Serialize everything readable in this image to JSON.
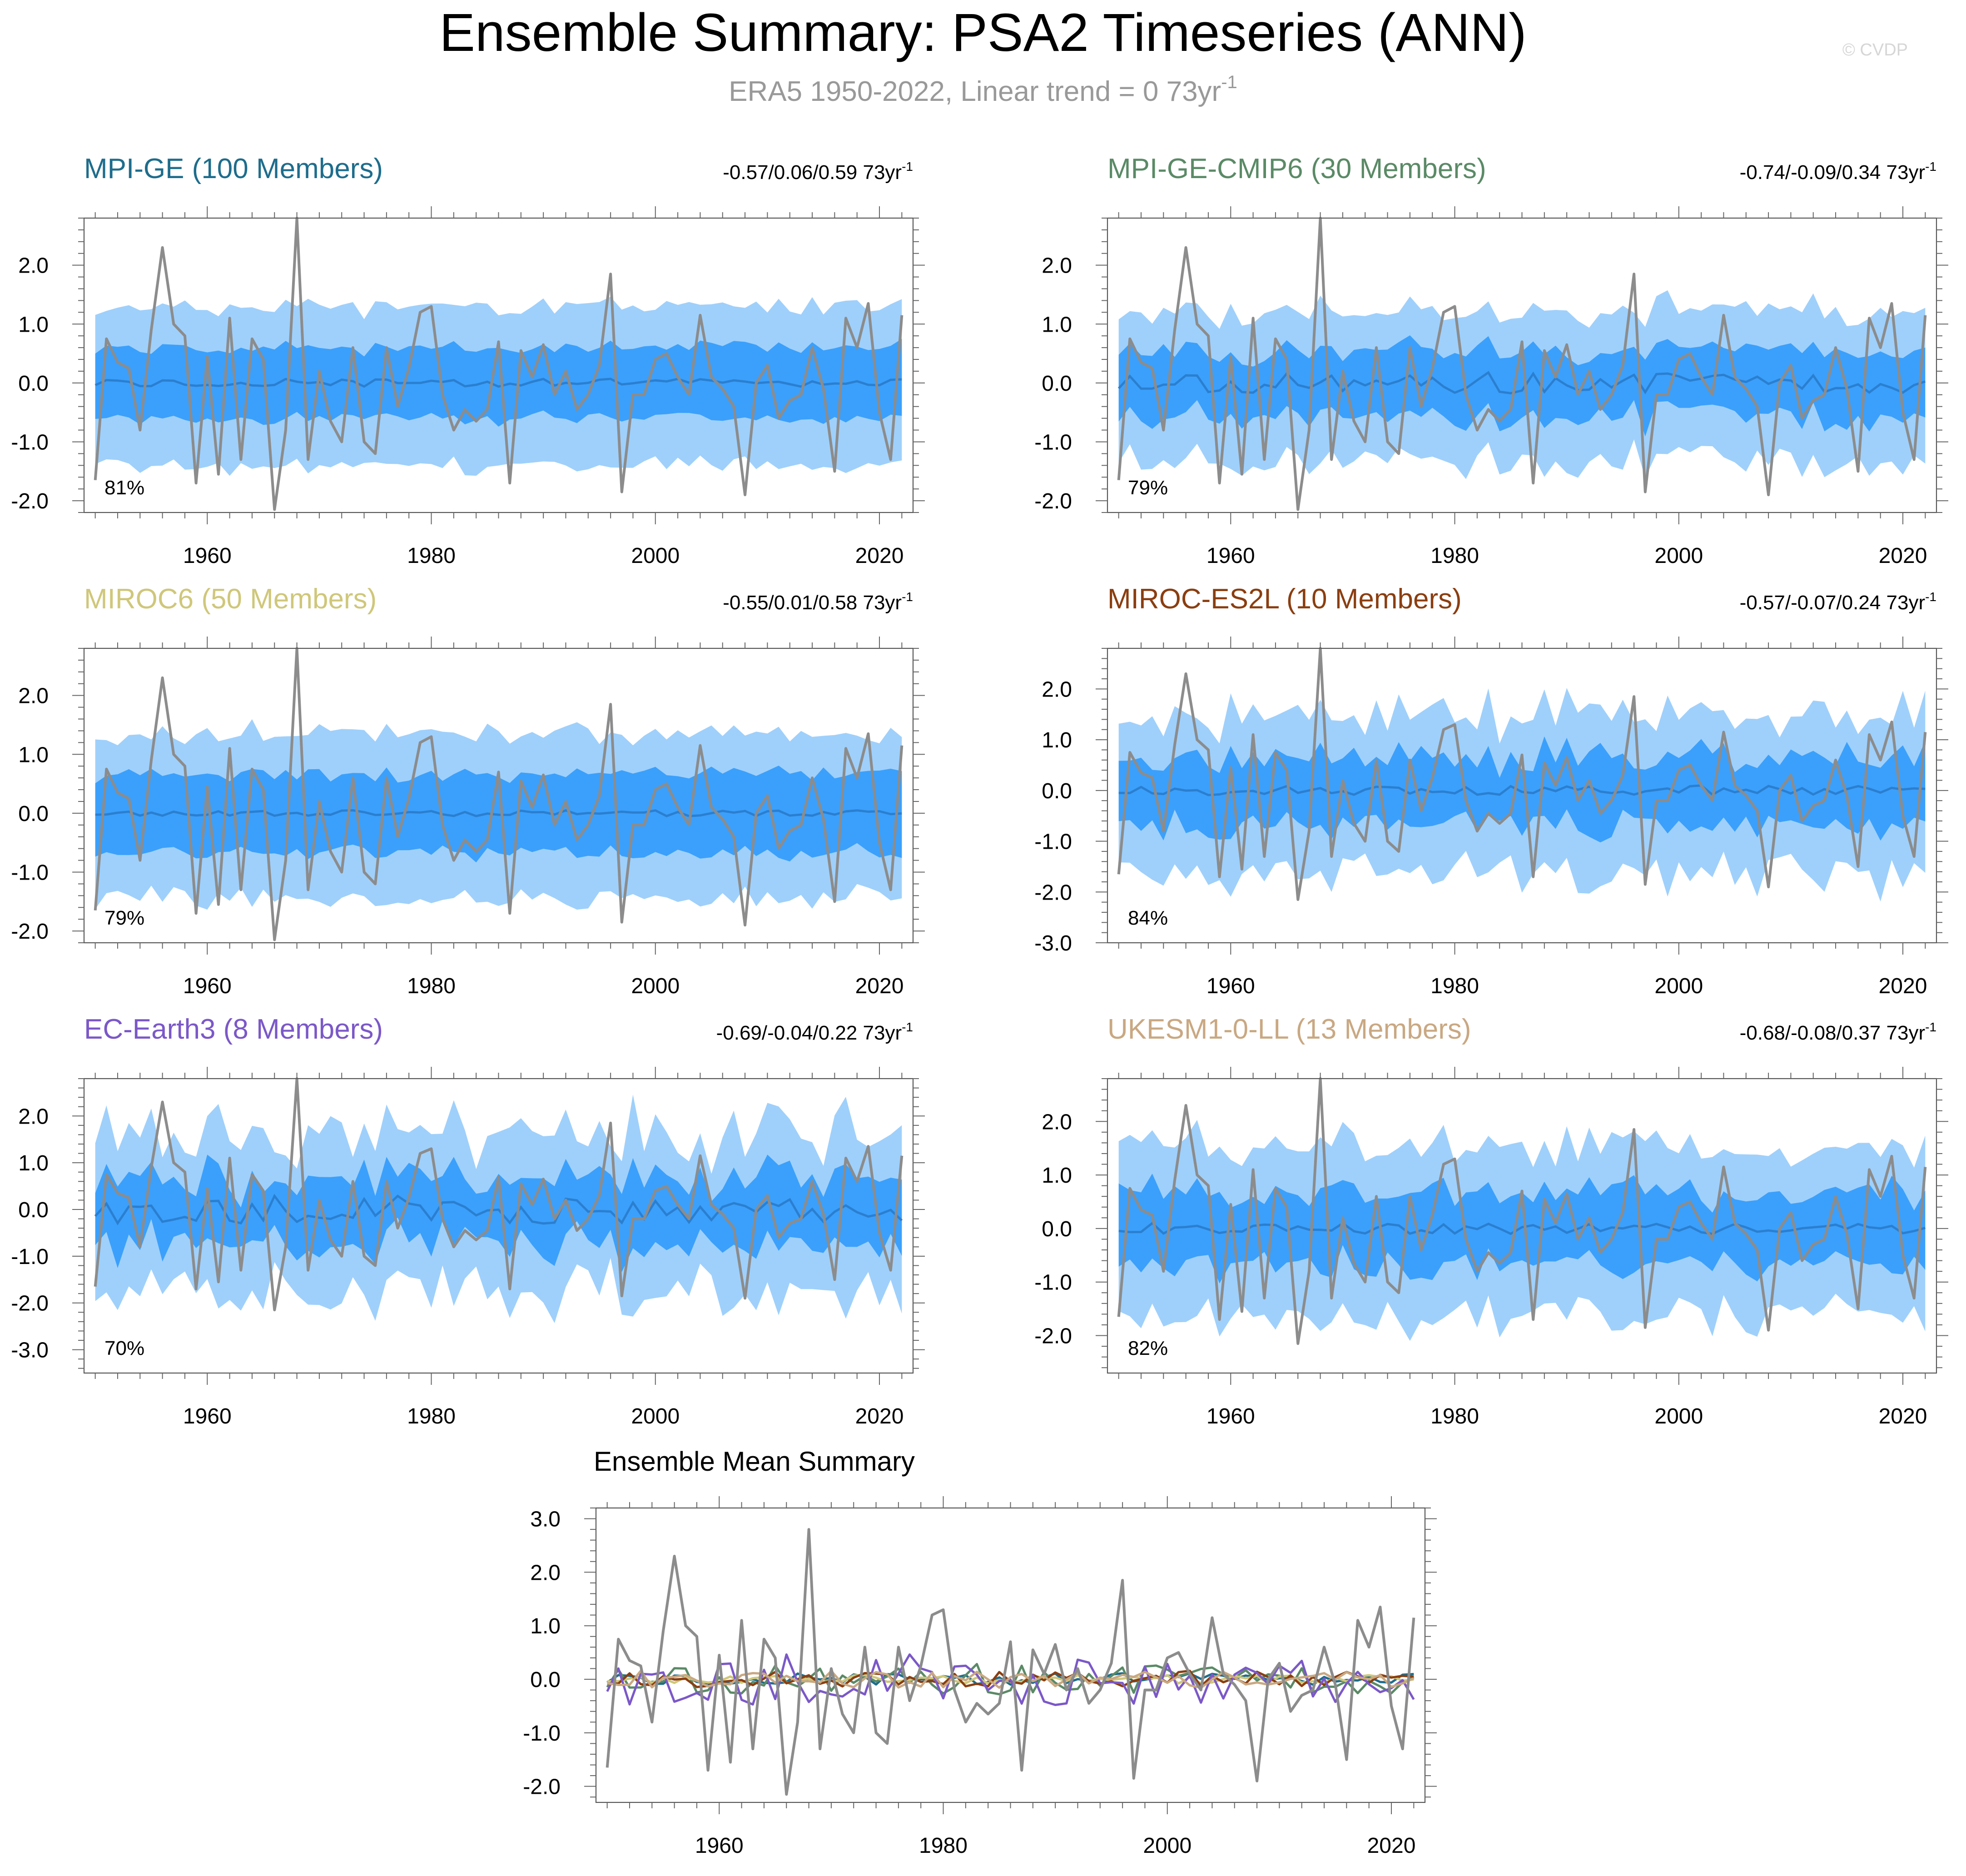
{
  "page": {
    "title": "Ensemble Summary: PSA2 Timeseries (ANN)",
    "subtitle": "ERA5 1950-2022, Linear trend = 0 73yr",
    "subtitle_sup": "-1",
    "watermark": "© CVDP"
  },
  "colors": {
    "outer_band": "#9fd0fb",
    "inner_band": "#3ba0fb",
    "ens_mean": "#2b7fd0",
    "obs": "#8c8c8c"
  },
  "chart_data": [
    {
      "type": "area",
      "title": "MPI-GE (100 Members)",
      "title_color": "#1e6d8c",
      "trend_label": "-0.57/0.06/0.59 73yr",
      "trend_sup": "-1",
      "corr_label": "81%",
      "ylim": [
        -2.2,
        2.8
      ],
      "yticks": [
        -2,
        -1,
        0,
        1,
        2
      ],
      "yticklabels": [
        "-2.0",
        "-1.0",
        "0.0",
        "1.0",
        "2.0"
      ],
      "xlim": [
        1949,
        2023
      ],
      "xticks": [
        1960,
        1980,
        2000,
        2020
      ],
      "xticklabels": [
        "1960",
        "1980",
        "2000",
        "2020"
      ],
      "outer": [
        1.2,
        1.4
      ],
      "inner": [
        0.55,
        0.65
      ],
      "noise": 0.06,
      "mean_amp": 0.07,
      "seed": 11
    },
    {
      "type": "area",
      "title": "MPI-GE-CMIP6 (30 Members)",
      "title_color": "#5a8a66",
      "trend_label": "-0.74/-0.09/0.34 73yr",
      "trend_sup": "-1",
      "corr_label": "79%",
      "ylim": [
        -2.2,
        2.8
      ],
      "yticks": [
        -2,
        -1,
        0,
        1,
        2
      ],
      "yticklabels": [
        "-2.0",
        "-1.0",
        "0.0",
        "1.0",
        "2.0"
      ],
      "xlim": [
        1949,
        2023
      ],
      "xticks": [
        1960,
        1980,
        2000,
        2020
      ],
      "xticklabels": [
        "1960",
        "1980",
        "2000",
        "2020"
      ],
      "outer": [
        1.1,
        1.35
      ],
      "inner": [
        0.5,
        0.65
      ],
      "noise": 0.12,
      "mean_amp": 0.18,
      "seed": 23
    },
    {
      "type": "area",
      "title": "MIROC6 (50 Members)",
      "title_color": "#cfc77a",
      "trend_label": "-0.55/0.01/0.58 73yr",
      "trend_sup": "-1",
      "corr_label": "79%",
      "ylim": [
        -2.2,
        2.8
      ],
      "yticks": [
        -2,
        -1,
        0,
        1,
        2
      ],
      "yticklabels": [
        "-2.0",
        "-1.0",
        "0.0",
        "1.0",
        "2.0"
      ],
      "xlim": [
        1949,
        2023
      ],
      "xticks": [
        1960,
        1980,
        2000,
        2020
      ],
      "xticklabels": [
        "1960",
        "1980",
        "2000",
        "2020"
      ],
      "outer": [
        1.2,
        1.5
      ],
      "inner": [
        0.6,
        0.75
      ],
      "noise": 0.1,
      "mean_amp": 0.05,
      "seed": 37
    },
    {
      "type": "area",
      "title": "MIROC-ES2L (10 Members)",
      "title_color": "#8b3e10",
      "trend_label": "-0.57/-0.07/0.24 73yr",
      "trend_sup": "-1",
      "corr_label": "84%",
      "ylim": [
        -3.0,
        2.8
      ],
      "yticks": [
        -3,
        -2,
        -1,
        0,
        1,
        2
      ],
      "yticklabels": [
        "-3.0",
        "-2.0",
        "-1.0",
        "0.0",
        "1.0",
        "2.0"
      ],
      "xlim": [
        1949,
        2023
      ],
      "xticks": [
        1960,
        1980,
        2000,
        2020
      ],
      "xticklabels": [
        "1960",
        "1980",
        "2000",
        "2020"
      ],
      "outer": [
        1.3,
        1.8
      ],
      "inner": [
        0.6,
        0.75
      ],
      "noise": 0.35,
      "mean_amp": 0.1,
      "seed": 53
    },
    {
      "type": "area",
      "title": "EC-Earth3 (8 Members)",
      "title_color": "#7b58c8",
      "trend_label": "-0.69/-0.04/0.22 73yr",
      "trend_sup": "-1",
      "corr_label": "70%",
      "ylim": [
        -3.5,
        2.8
      ],
      "yticks": [
        -3,
        -2,
        -1,
        0,
        1,
        2
      ],
      "yticklabels": [
        "-3.0",
        "-2.0",
        "-1.0",
        "0.0",
        "1.0",
        "2.0"
      ],
      "xlim": [
        1949,
        2023
      ],
      "xticks": [
        1960,
        1980,
        2000,
        2020
      ],
      "xticklabels": [
        "1960",
        "1980",
        "2000",
        "2020"
      ],
      "outer": [
        1.3,
        2.0
      ],
      "inner": [
        0.6,
        0.8
      ],
      "noise": 0.4,
      "mean_amp": 0.3,
      "seed": 71
    },
    {
      "type": "area",
      "title": "UKESM1-0-LL (13 Members)",
      "title_color": "#c9a882",
      "trend_label": "-0.68/-0.08/0.37 73yr",
      "trend_sup": "-1",
      "corr_label": "82%",
      "ylim": [
        -2.7,
        2.8
      ],
      "yticks": [
        -2,
        -1,
        0,
        1,
        2
      ],
      "yticklabels": [
        "-2.0",
        "-1.0",
        "0.0",
        "1.0",
        "2.0"
      ],
      "xlim": [
        1949,
        2023
      ],
      "xticks": [
        1960,
        1980,
        2000,
        2020
      ],
      "xticklabels": [
        "1960",
        "1980",
        "2000",
        "2020"
      ],
      "outer": [
        1.3,
        1.75
      ],
      "inner": [
        0.6,
        0.75
      ],
      "noise": 0.3,
      "mean_amp": 0.1,
      "seed": 89
    },
    {
      "type": "line",
      "title": "Ensemble Mean Summary",
      "ylim": [
        -2.3,
        3.2
      ],
      "yticks": [
        -2,
        -1,
        0,
        1,
        2,
        3
      ],
      "yticklabels": [
        "-2.0",
        "-1.0",
        "0.0",
        "1.0",
        "2.0",
        "3.0"
      ],
      "xlim": [
        1949,
        2023
      ],
      "xticks": [
        1960,
        1980,
        2000,
        2020
      ],
      "xticklabels": [
        "1960",
        "1980",
        "2000",
        "2020"
      ],
      "series_colors": [
        "#1e6d8c",
        "#5a8a66",
        "#cfc77a",
        "#8b3e10",
        "#7b58c8",
        "#c9a882"
      ]
    }
  ],
  "obs": {
    "name": "ERA5",
    "years": [
      1950,
      1951,
      1952,
      1953,
      1954,
      1955,
      1956,
      1957,
      1958,
      1959,
      1960,
      1961,
      1962,
      1963,
      1964,
      1965,
      1966,
      1967,
      1968,
      1969,
      1970,
      1971,
      1972,
      1973,
      1974,
      1975,
      1976,
      1977,
      1978,
      1979,
      1980,
      1981,
      1982,
      1983,
      1984,
      1985,
      1986,
      1987,
      1988,
      1989,
      1990,
      1991,
      1992,
      1993,
      1994,
      1995,
      1996,
      1997,
      1998,
      1999,
      2000,
      2001,
      2002,
      2003,
      2004,
      2005,
      2006,
      2007,
      2008,
      2009,
      2010,
      2011,
      2012,
      2013,
      2014,
      2015,
      2016,
      2017,
      2018,
      2019,
      2020,
      2021,
      2022
    ],
    "values": [
      -1.65,
      0.75,
      0.35,
      0.25,
      -0.8,
      0.9,
      2.3,
      1.0,
      0.8,
      -1.7,
      0.45,
      -1.55,
      1.1,
      -1.3,
      0.75,
      0.4,
      -2.15,
      -0.8,
      2.8,
      -1.3,
      0.2,
      -0.65,
      -1.0,
      0.6,
      -1.0,
      -1.2,
      0.6,
      -0.4,
      0.25,
      1.2,
      1.3,
      -0.2,
      -0.8,
      -0.45,
      -0.65,
      -0.45,
      0.7,
      -1.7,
      0.55,
      0.1,
      0.65,
      -0.2,
      0.2,
      -0.45,
      -0.2,
      0.3,
      1.85,
      -1.85,
      -0.2,
      -0.2,
      0.4,
      0.5,
      0.1,
      -0.2,
      1.15,
      0.1,
      -0.1,
      -0.4,
      -1.9,
      0.0,
      0.3,
      -0.6,
      -0.3,
      -0.2,
      0.6,
      -0.1,
      -1.5,
      1.1,
      0.6,
      1.35,
      -0.5,
      -1.3,
      1.15
    ]
  }
}
